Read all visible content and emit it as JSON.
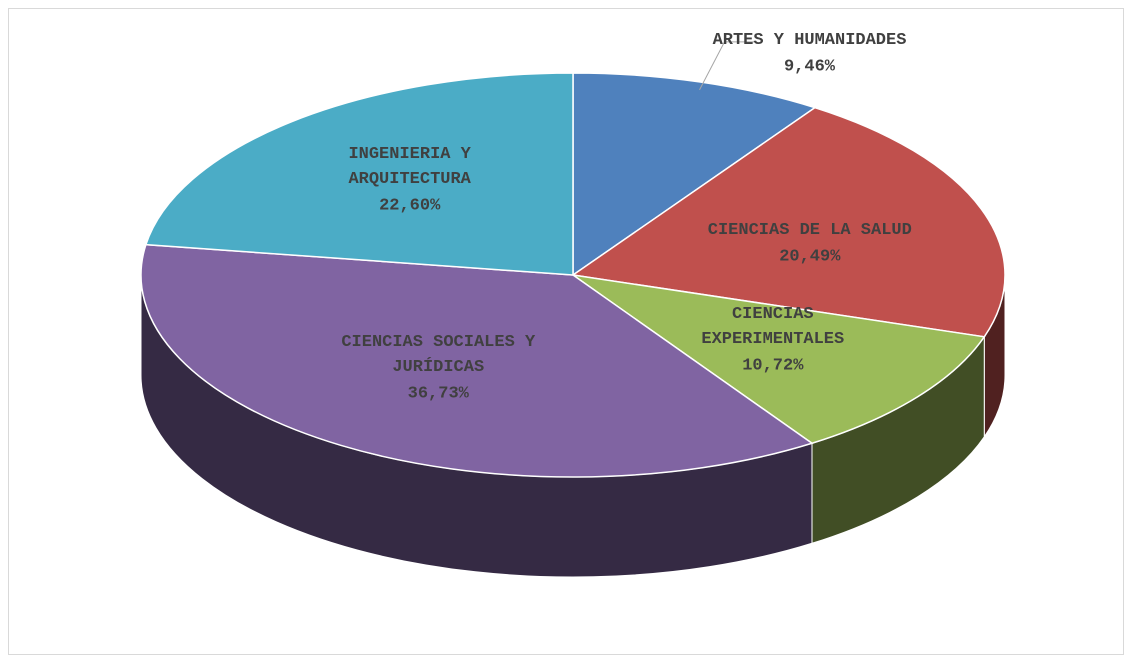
{
  "chart_data": {
    "type": "pie",
    "categories": [
      "ARTES Y HUMANIDADES",
      "CIENCIAS DE LA SALUD",
      "CIENCIAS EXPERIMENTALES",
      "CIENCIAS SOCIALES Y JURÍDICAS",
      "INGENIERIA Y ARQUITECTURA"
    ],
    "values": [
      9.46,
      20.49,
      10.72,
      36.73,
      22.6
    ],
    "value_labels": [
      "9,46%",
      "20,49%",
      "10,72%",
      "36,73%",
      "22,60%"
    ],
    "colors": [
      "#4f81bd",
      "#c0504d",
      "#9bbb59",
      "#8064a2",
      "#4bacc6"
    ]
  }
}
